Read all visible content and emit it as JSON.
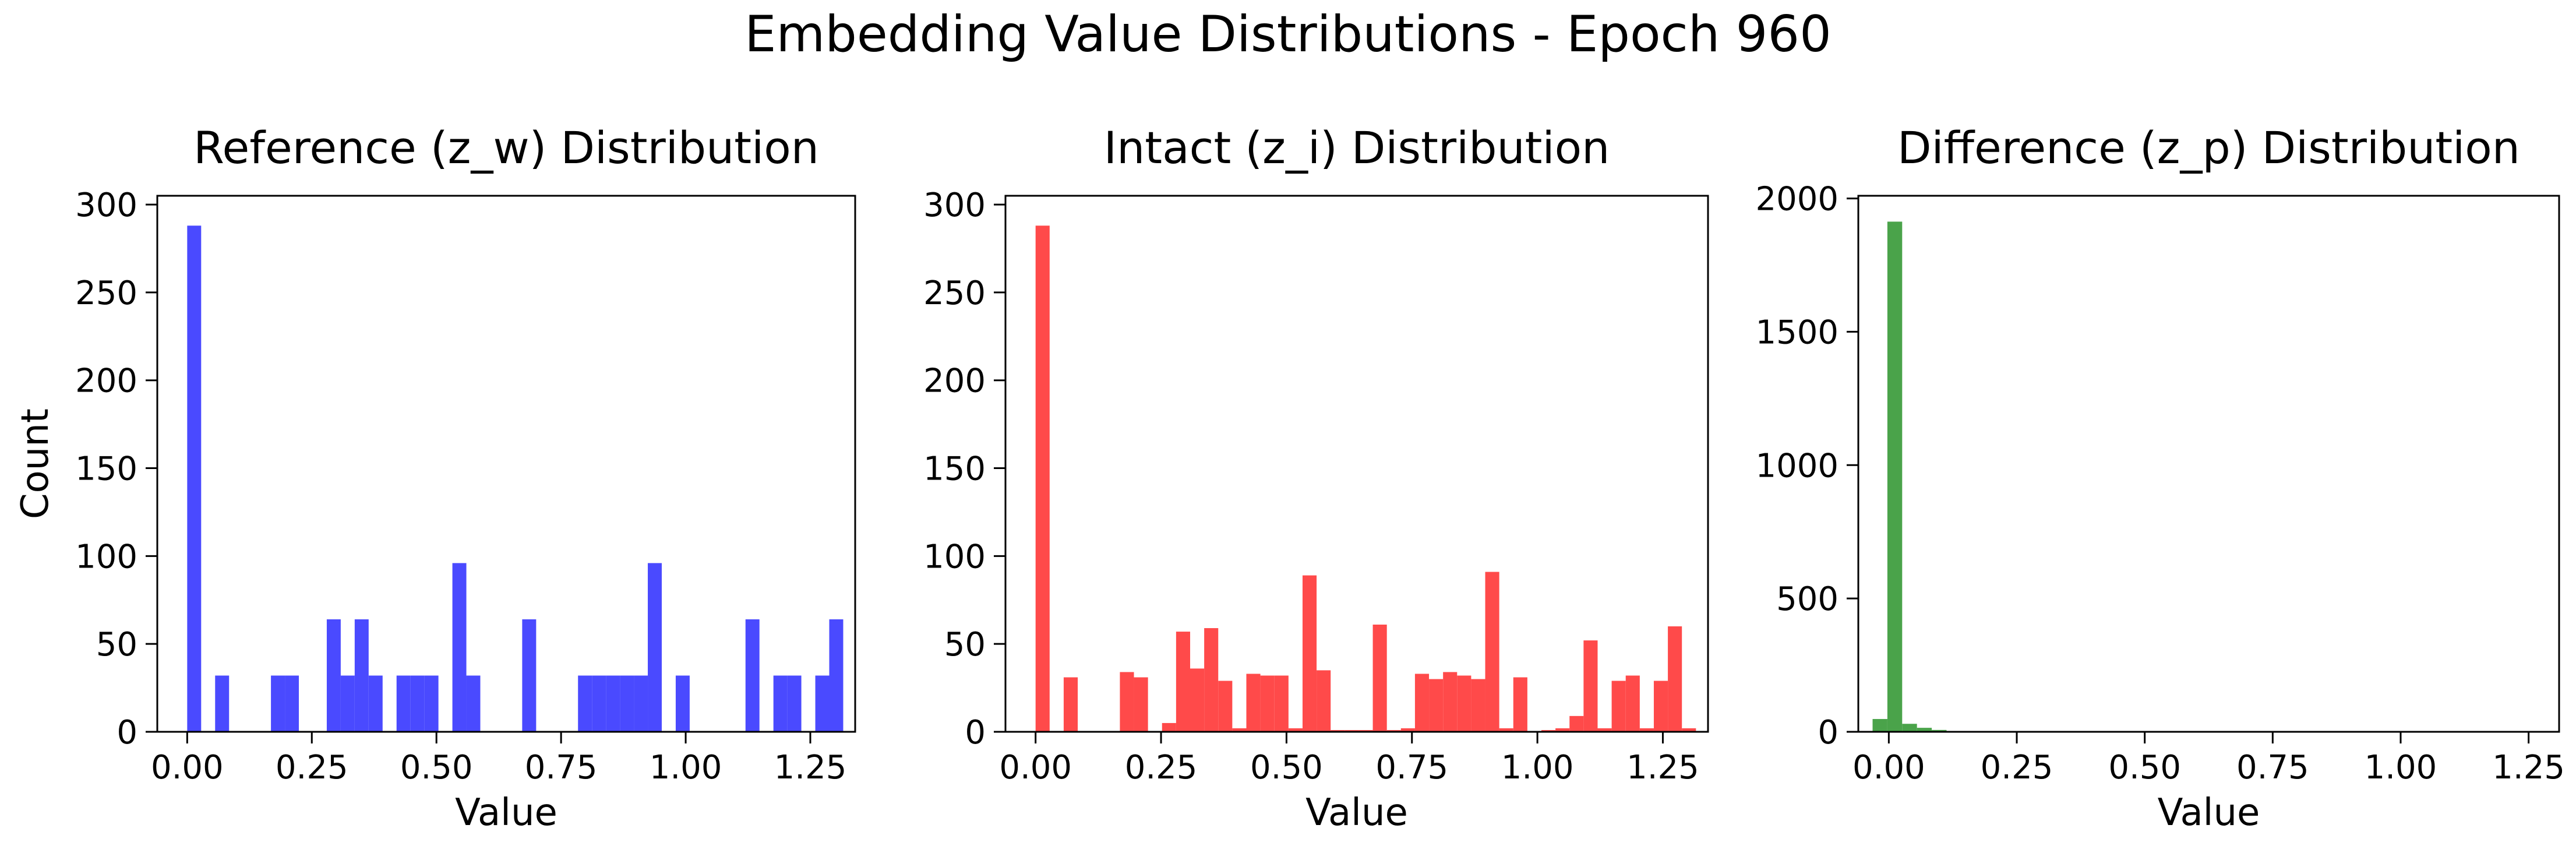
{
  "figure": {
    "suptitle": "Embedding Value Distributions - Epoch 960"
  },
  "chart_data": [
    {
      "type": "bar",
      "chart_kind": "histogram",
      "title": "Reference (z_w) Distribution",
      "xlabel": "Value",
      "ylabel": "Count",
      "color": "#4a4aff",
      "xlim": [
        -0.06,
        1.34
      ],
      "ylim": [
        0,
        305
      ],
      "xticks": [
        0.0,
        0.25,
        0.5,
        0.75,
        1.0,
        1.25
      ],
      "xtick_labels": [
        "0.00",
        "0.25",
        "0.50",
        "0.75",
        "1.00",
        "1.25"
      ],
      "yticks": [
        0,
        50,
        100,
        150,
        200,
        250,
        300
      ],
      "ytick_labels": [
        "0",
        "50",
        "100",
        "150",
        "200",
        "250",
        "300"
      ],
      "bin_edges": [
        0.0,
        0.028,
        0.056,
        0.084,
        0.112,
        0.14,
        0.168,
        0.196,
        0.224,
        0.252,
        0.28,
        0.308,
        0.336,
        0.364,
        0.392,
        0.42,
        0.448,
        0.476,
        0.504,
        0.532,
        0.56,
        0.588,
        0.616,
        0.644,
        0.672,
        0.7,
        0.728,
        0.756,
        0.784,
        0.812,
        0.84,
        0.868,
        0.896,
        0.924,
        0.952,
        0.98,
        1.008,
        1.036,
        1.064,
        1.092,
        1.12,
        1.148,
        1.176,
        1.204,
        1.232,
        1.26,
        1.288,
        1.316
      ],
      "counts": [
        288,
        0,
        32,
        0,
        0,
        0,
        32,
        32,
        0,
        0,
        64,
        32,
        64,
        32,
        0,
        32,
        32,
        32,
        0,
        96,
        32,
        0,
        0,
        0,
        64,
        0,
        0,
        0,
        32,
        32,
        32,
        32,
        32,
        96,
        0,
        32,
        0,
        0,
        0,
        0,
        64,
        0,
        32,
        32,
        0,
        32,
        64
      ]
    },
    {
      "type": "bar",
      "chart_kind": "histogram",
      "title": "Intact (z_i) Distribution",
      "xlabel": "Value",
      "ylabel": "",
      "color": "#ff4a4a",
      "xlim": [
        -0.06,
        1.34
      ],
      "ylim": [
        0,
        305
      ],
      "xticks": [
        0.0,
        0.25,
        0.5,
        0.75,
        1.0,
        1.25
      ],
      "xtick_labels": [
        "0.00",
        "0.25",
        "0.50",
        "0.75",
        "1.00",
        "1.25"
      ],
      "yticks": [
        0,
        50,
        100,
        150,
        200,
        250,
        300
      ],
      "ytick_labels": [
        "0",
        "50",
        "100",
        "150",
        "200",
        "250",
        "300"
      ],
      "bin_edges": [
        0.0,
        0.028,
        0.056,
        0.084,
        0.112,
        0.14,
        0.168,
        0.196,
        0.224,
        0.252,
        0.28,
        0.308,
        0.336,
        0.364,
        0.392,
        0.42,
        0.448,
        0.476,
        0.504,
        0.532,
        0.56,
        0.588,
        0.616,
        0.644,
        0.672,
        0.7,
        0.728,
        0.756,
        0.784,
        0.812,
        0.84,
        0.868,
        0.896,
        0.924,
        0.952,
        0.98,
        1.008,
        1.036,
        1.064,
        1.092,
        1.12,
        1.148,
        1.176,
        1.204,
        1.232,
        1.26,
        1.288,
        1.316
      ],
      "counts": [
        288,
        0,
        31,
        0,
        0,
        0,
        34,
        31,
        0,
        5,
        57,
        36,
        59,
        29,
        2,
        33,
        32,
        32,
        2,
        89,
        35,
        1,
        1,
        1,
        61,
        1,
        2,
        33,
        30,
        34,
        32,
        30,
        91,
        2,
        31,
        0,
        1,
        2,
        9,
        52,
        2,
        29,
        32,
        2,
        29,
        60,
        2
      ]
    },
    {
      "type": "bar",
      "chart_kind": "histogram",
      "title": "Difference (z_p) Distribution",
      "xlabel": "Value",
      "ylabel": "",
      "color": "#4aa34a",
      "xlim": [
        -0.0596,
        1.3096
      ],
      "ylim": [
        0,
        2010
      ],
      "xticks": [
        0.0,
        0.25,
        0.5,
        0.75,
        1.0,
        1.25
      ],
      "xtick_labels": [
        "0.00",
        "0.25",
        "0.50",
        "0.75",
        "1.00",
        "1.25"
      ],
      "yticks": [
        0,
        500,
        1000,
        1500,
        2000
      ],
      "ytick_labels": [
        "0",
        "500",
        "1000",
        "1500",
        "2000"
      ],
      "bin_edges": [
        -0.0317,
        -0.0028,
        0.0261,
        0.055,
        0.0839,
        0.1128,
        0.1417
      ],
      "counts": [
        48,
        1913,
        30,
        15,
        7,
        2
      ]
    }
  ]
}
